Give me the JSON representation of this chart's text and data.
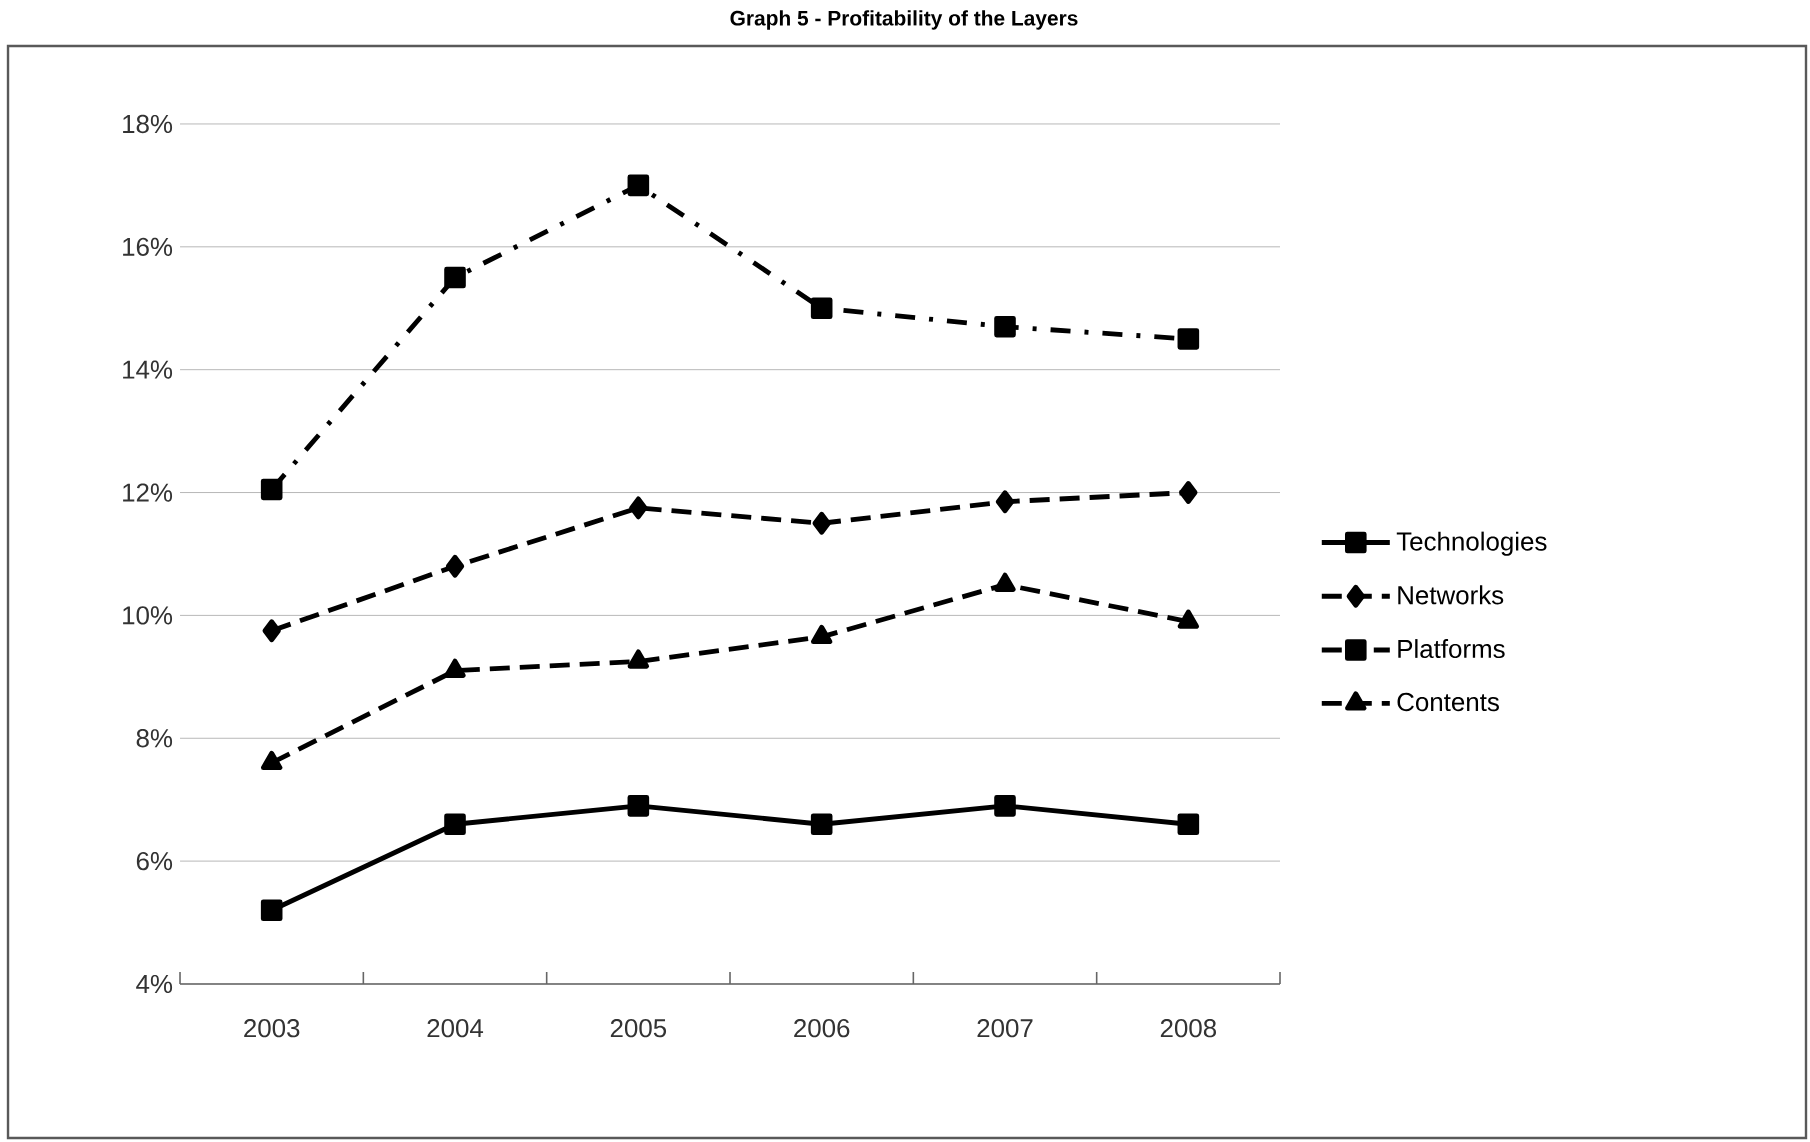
{
  "chart_data": {
    "type": "line",
    "title": "Graph 5 -  Profitability of the Layers",
    "categories": [
      "2003",
      "2004",
      "2005",
      "2006",
      "2007",
      "2008"
    ],
    "series": [
      {
        "name": "Technologies",
        "color": "#000000",
        "marker": "square",
        "line_style": "solid",
        "values": [
          5.2,
          6.6,
          6.9,
          6.6,
          6.9,
          6.6
        ]
      },
      {
        "name": "Networks",
        "color": "#000000",
        "marker": "diamond",
        "line_style": "dashed",
        "values": [
          9.75,
          10.8,
          11.75,
          11.5,
          11.85,
          12.0
        ]
      },
      {
        "name": "Platforms",
        "color": "#000000",
        "marker": "square",
        "line_style": "dashdot",
        "values": [
          12.05,
          15.5,
          17.0,
          15.0,
          14.7,
          14.5
        ]
      },
      {
        "name": "Contents",
        "color": "#000000",
        "marker": "triangle",
        "line_style": "dashed",
        "values": [
          7.6,
          9.1,
          9.25,
          9.65,
          10.5,
          9.9
        ]
      }
    ],
    "ylim": [
      4,
      18
    ],
    "yticks": [
      {
        "value": 4,
        "label": "4%"
      },
      {
        "value": 6,
        "label": "6%"
      },
      {
        "value": 8,
        "label": "8%"
      },
      {
        "value": 10,
        "label": "10%"
      },
      {
        "value": 12,
        "label": "12%"
      },
      {
        "value": 14,
        "label": "14%"
      },
      {
        "value": 16,
        "label": "16%"
      },
      {
        "value": 18,
        "label": "18%"
      }
    ],
    "grid": "y",
    "legend": "right"
  }
}
